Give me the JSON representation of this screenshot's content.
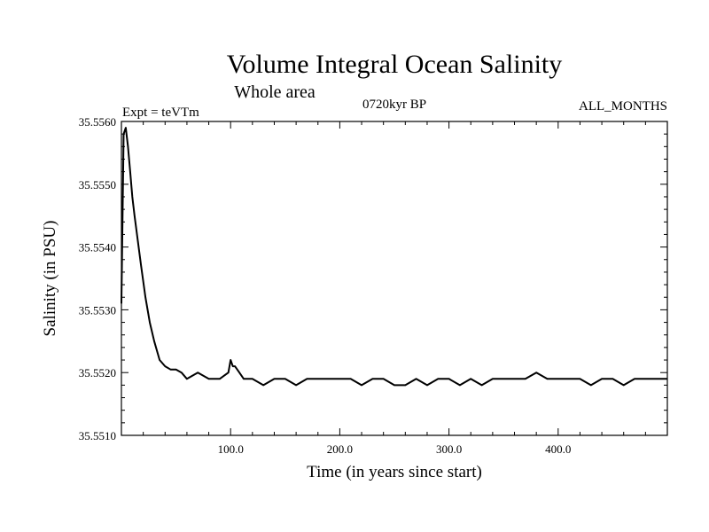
{
  "chart_data": {
    "type": "line",
    "title": "Volume Integral Ocean Salinity",
    "subtitle": "Whole area",
    "annotations": {
      "left": "Expt = teVTm",
      "center": "0720kyr BP",
      "right": "ALL_MONTHS"
    },
    "xlabel": "Time (in years since start)",
    "ylabel": "Salinity (in PSU)",
    "xlim": [
      0,
      500
    ],
    "ylim": [
      35.551,
      35.556
    ],
    "x_ticks": [
      100,
      200,
      300,
      400
    ],
    "x_tick_labels": [
      "100.0",
      "200.0",
      "300.0",
      "400.0"
    ],
    "y_ticks": [
      35.551,
      35.552,
      35.553,
      35.554,
      35.555,
      35.556
    ],
    "y_tick_labels": [
      "35.5510",
      "35.5520",
      "35.5530",
      "35.5540",
      "35.5550",
      "35.5560"
    ],
    "grid": false,
    "series": [
      {
        "color": "#000000",
        "x": [
          0,
          2,
          4,
          6,
          8,
          10,
          12,
          15,
          18,
          22,
          26,
          30,
          35,
          40,
          45,
          50,
          55,
          60,
          70,
          80,
          90,
          98,
          100,
          102,
          104,
          108,
          112,
          116,
          120,
          130,
          140,
          150,
          160,
          170,
          180,
          190,
          200,
          210,
          220,
          230,
          240,
          250,
          260,
          270,
          280,
          290,
          300,
          310,
          320,
          330,
          340,
          350,
          360,
          370,
          380,
          390,
          400,
          410,
          420,
          430,
          440,
          450,
          460,
          470,
          480,
          490,
          500
        ],
        "y": [
          35.5531,
          35.5558,
          35.5559,
          35.5556,
          35.5552,
          35.5548,
          35.5545,
          35.5541,
          35.5537,
          35.5532,
          35.5528,
          35.5525,
          35.5522,
          35.5521,
          35.55205,
          35.55205,
          35.552,
          35.5519,
          35.552,
          35.5519,
          35.5519,
          35.552,
          35.5522,
          35.5521,
          35.5521,
          35.552,
          35.5519,
          35.5519,
          35.5519,
          35.5518,
          35.5519,
          35.5519,
          35.5518,
          35.5519,
          35.5519,
          35.5519,
          35.5519,
          35.5519,
          35.5518,
          35.5519,
          35.5519,
          35.5518,
          35.5518,
          35.5519,
          35.5518,
          35.5519,
          35.5519,
          35.5518,
          35.5519,
          35.5518,
          35.5519,
          35.5519,
          35.5519,
          35.5519,
          35.552,
          35.5519,
          35.5519,
          35.5519,
          35.5519,
          35.5518,
          35.5519,
          35.5519,
          35.5518,
          35.5519,
          35.5519,
          35.5519,
          35.5519
        ]
      }
    ]
  }
}
